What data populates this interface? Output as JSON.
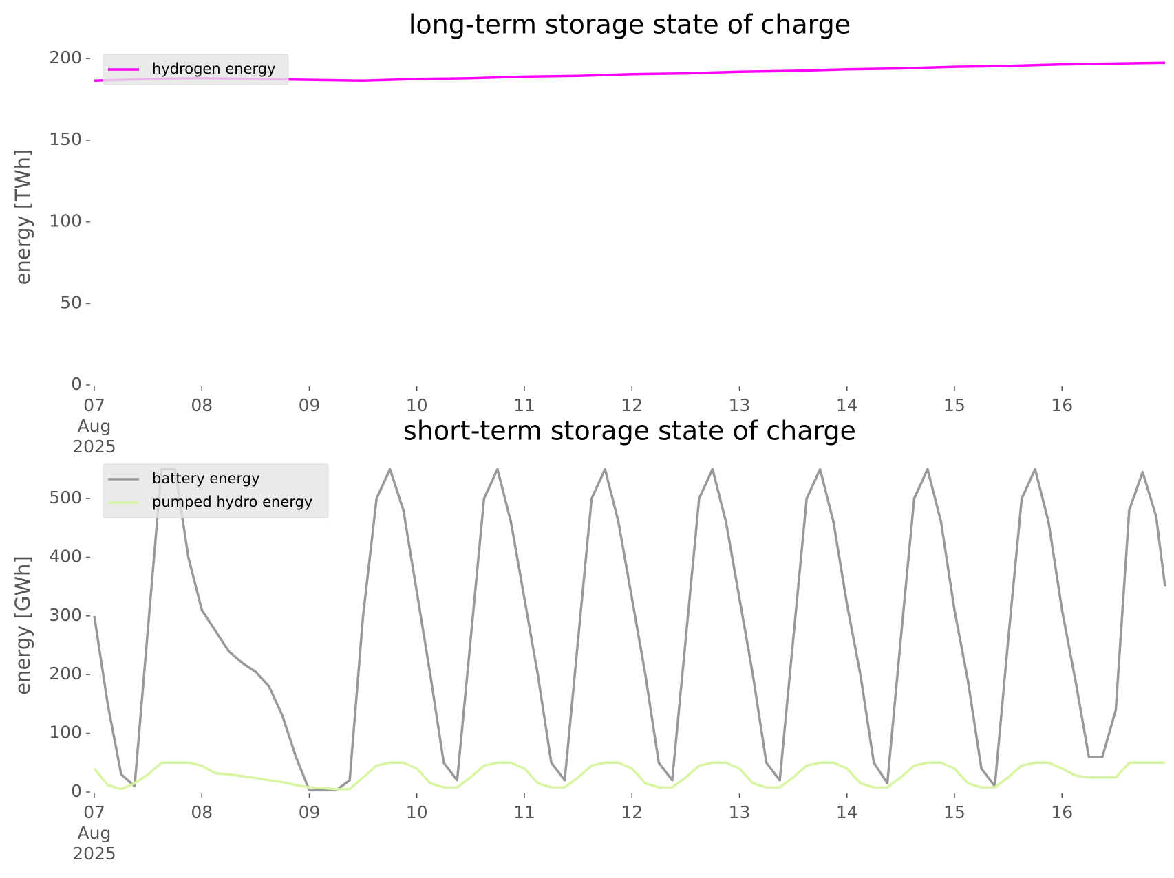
{
  "chart_data": [
    {
      "type": "line",
      "title": "long-term storage state of charge",
      "ylabel": "energy [TWh]",
      "legend": "upper left",
      "grid": false,
      "x": [
        "2025-08-07 00:00",
        "2025-08-07 12:00",
        "2025-08-08 00:00",
        "2025-08-08 12:00",
        "2025-08-09 00:00",
        "2025-08-09 12:00",
        "2025-08-10 00:00",
        "2025-08-10 12:00",
        "2025-08-11 00:00",
        "2025-08-11 12:00",
        "2025-08-12 00:00",
        "2025-08-12 12:00",
        "2025-08-13 00:00",
        "2025-08-13 12:00",
        "2025-08-14 00:00",
        "2025-08-14 12:00",
        "2025-08-15 00:00",
        "2025-08-15 12:00",
        "2025-08-16 00:00",
        "2025-08-16 12:00",
        "2025-08-16 23:00"
      ],
      "series": [
        {
          "name": "hydrogen energy",
          "color": "#ff00ff",
          "values": [
            186.5,
            187.5,
            188,
            187.5,
            187,
            186.5,
            187.5,
            188,
            189,
            189.5,
            190.5,
            191,
            192,
            192.5,
            193.5,
            194,
            195,
            195.5,
            196.5,
            197,
            197.5
          ]
        }
      ],
      "xlim": [
        "2025-08-07 00:00",
        "2025-08-16 23:00"
      ],
      "xticks": [
        {
          "value": "2025-08-07 00:00",
          "label": "07\nAug\n2025"
        },
        {
          "value": "2025-08-08 00:00",
          "label": "08"
        },
        {
          "value": "2025-08-09 00:00",
          "label": "09"
        },
        {
          "value": "2025-08-10 00:00",
          "label": "10"
        },
        {
          "value": "2025-08-11 00:00",
          "label": "11"
        },
        {
          "value": "2025-08-12 00:00",
          "label": "12"
        },
        {
          "value": "2025-08-13 00:00",
          "label": "13"
        },
        {
          "value": "2025-08-14 00:00",
          "label": "14"
        },
        {
          "value": "2025-08-15 00:00",
          "label": "15"
        },
        {
          "value": "2025-08-16 00:00",
          "label": "16"
        }
      ],
      "ylim": [
        0,
        206
      ],
      "yticks": [
        0,
        50,
        100,
        150,
        200
      ]
    },
    {
      "type": "line",
      "title": "short-term storage state of charge",
      "ylabel": "energy [GWh]",
      "legend": "upper left",
      "grid": false,
      "x": [
        "2025-08-07 00:00",
        "2025-08-07 03:00",
        "2025-08-07 06:00",
        "2025-08-07 09:00",
        "2025-08-07 12:00",
        "2025-08-07 15:00",
        "2025-08-07 18:00",
        "2025-08-07 21:00",
        "2025-08-08 00:00",
        "2025-08-08 03:00",
        "2025-08-08 06:00",
        "2025-08-08 09:00",
        "2025-08-08 12:00",
        "2025-08-08 15:00",
        "2025-08-08 18:00",
        "2025-08-08 21:00",
        "2025-08-09 00:00",
        "2025-08-09 03:00",
        "2025-08-09 06:00",
        "2025-08-09 09:00",
        "2025-08-09 12:00",
        "2025-08-09 15:00",
        "2025-08-09 18:00",
        "2025-08-09 21:00",
        "2025-08-10 00:00",
        "2025-08-10 03:00",
        "2025-08-10 06:00",
        "2025-08-10 09:00",
        "2025-08-10 12:00",
        "2025-08-10 15:00",
        "2025-08-10 18:00",
        "2025-08-10 21:00",
        "2025-08-11 00:00",
        "2025-08-11 03:00",
        "2025-08-11 06:00",
        "2025-08-11 09:00",
        "2025-08-11 12:00",
        "2025-08-11 15:00",
        "2025-08-11 18:00",
        "2025-08-11 21:00",
        "2025-08-12 00:00",
        "2025-08-12 03:00",
        "2025-08-12 06:00",
        "2025-08-12 09:00",
        "2025-08-12 12:00",
        "2025-08-12 15:00",
        "2025-08-12 18:00",
        "2025-08-12 21:00",
        "2025-08-13 00:00",
        "2025-08-13 03:00",
        "2025-08-13 06:00",
        "2025-08-13 09:00",
        "2025-08-13 12:00",
        "2025-08-13 15:00",
        "2025-08-13 18:00",
        "2025-08-13 21:00",
        "2025-08-14 00:00",
        "2025-08-14 03:00",
        "2025-08-14 06:00",
        "2025-08-14 09:00",
        "2025-08-14 12:00",
        "2025-08-14 15:00",
        "2025-08-14 18:00",
        "2025-08-14 21:00",
        "2025-08-15 00:00",
        "2025-08-15 03:00",
        "2025-08-15 06:00",
        "2025-08-15 09:00",
        "2025-08-15 12:00",
        "2025-08-15 15:00",
        "2025-08-15 18:00",
        "2025-08-15 21:00",
        "2025-08-16 00:00",
        "2025-08-16 03:00",
        "2025-08-16 06:00",
        "2025-08-16 09:00",
        "2025-08-16 12:00",
        "2025-08-16 15:00",
        "2025-08-16 18:00",
        "2025-08-16 21:00",
        "2025-08-16 23:00"
      ],
      "series": [
        {
          "name": "battery energy",
          "color": "#999999",
          "values": [
            300,
            150,
            30,
            10,
            280,
            550,
            550,
            400,
            310,
            275,
            240,
            220,
            205,
            180,
            130,
            60,
            3,
            3,
            3,
            20,
            300,
            500,
            550,
            480,
            340,
            200,
            50,
            20,
            260,
            500,
            550,
            460,
            330,
            200,
            50,
            20,
            260,
            500,
            550,
            460,
            330,
            200,
            50,
            20,
            260,
            500,
            550,
            460,
            330,
            200,
            50,
            20,
            260,
            500,
            550,
            460,
            320,
            200,
            50,
            15,
            260,
            500,
            550,
            460,
            310,
            190,
            40,
            10,
            260,
            500,
            550,
            460,
            310,
            190,
            60,
            60,
            140,
            480,
            545,
            470,
            350
          ]
        },
        {
          "name": "pumped hydro energy",
          "color": "#d8f5a2",
          "values": [
            40,
            12,
            5,
            15,
            30,
            50,
            50,
            50,
            45,
            32,
            30,
            27,
            24,
            20,
            17,
            12,
            8,
            7,
            5,
            5,
            25,
            45,
            50,
            50,
            40,
            15,
            8,
            8,
            25,
            45,
            50,
            50,
            40,
            15,
            8,
            8,
            25,
            45,
            50,
            50,
            40,
            15,
            8,
            8,
            25,
            45,
            50,
            50,
            40,
            15,
            8,
            8,
            25,
            45,
            50,
            50,
            40,
            15,
            8,
            8,
            25,
            45,
            50,
            50,
            40,
            15,
            8,
            8,
            25,
            45,
            50,
            50,
            40,
            28,
            25,
            25,
            25,
            50,
            50,
            50,
            50
          ]
        }
      ],
      "xlim": [
        "2025-08-07 00:00",
        "2025-08-16 23:00"
      ],
      "xticks": [
        {
          "value": "2025-08-07 00:00",
          "label": "07\nAug\n2025"
        },
        {
          "value": "2025-08-08 00:00",
          "label": "08"
        },
        {
          "value": "2025-08-09 00:00",
          "label": "09"
        },
        {
          "value": "2025-08-10 00:00",
          "label": "10"
        },
        {
          "value": "2025-08-11 00:00",
          "label": "11"
        },
        {
          "value": "2025-08-12 00:00",
          "label": "12"
        },
        {
          "value": "2025-08-13 00:00",
          "label": "13"
        },
        {
          "value": "2025-08-14 00:00",
          "label": "14"
        },
        {
          "value": "2025-08-15 00:00",
          "label": "15"
        },
        {
          "value": "2025-08-16 00:00",
          "label": "16"
        }
      ],
      "ylim": [
        0,
        568
      ],
      "yticks": [
        0,
        100,
        200,
        300,
        400,
        500
      ]
    }
  ]
}
